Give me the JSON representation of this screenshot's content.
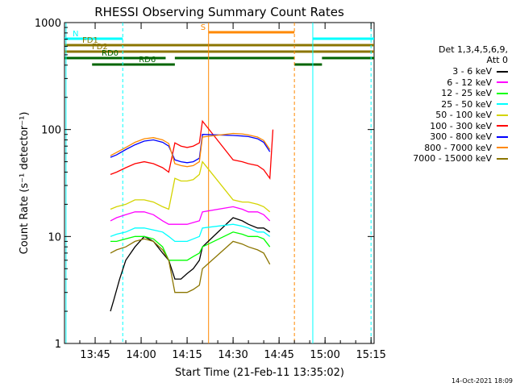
{
  "chart_data": {
    "type": "line",
    "title": "RHESSI Observing Summary Count Rates",
    "xlabel": "Start Time (21-Feb-11 13:35:02)",
    "ylabel": "Count Rate (s⁻¹ detector⁻¹)",
    "yscale": "log",
    "ylim": [
      1,
      1000
    ],
    "xlim_minutes": [
      0,
      101
    ],
    "x_tick_minutes": [
      10,
      25,
      40,
      55,
      70,
      85,
      100
    ],
    "x_tick_labels": [
      "13:45",
      "14:00",
      "14:15",
      "14:30",
      "14:45",
      "15:00",
      "15:15"
    ],
    "y_tick_values": [
      1,
      10,
      100,
      1000
    ],
    "y_tick_labels": [
      "1",
      "10",
      "100",
      "1000"
    ],
    "legend_title": [
      "Det 1,3,4,5,6,9,",
      "Att 0"
    ],
    "series": [
      {
        "name": "3 - 6 keV",
        "color": "#000000",
        "points": [
          [
            15,
            2
          ],
          [
            16,
            2.5
          ],
          [
            18,
            4
          ],
          [
            20,
            6
          ],
          [
            23,
            8
          ],
          [
            26,
            10
          ],
          [
            29,
            9
          ],
          [
            32,
            7
          ],
          [
            34,
            6
          ],
          [
            36,
            4
          ],
          [
            38,
            4
          ],
          [
            40,
            4.5
          ],
          [
            42,
            5
          ],
          [
            44,
            6
          ],
          [
            45,
            8
          ],
          [
            55,
            15
          ],
          [
            58,
            14
          ],
          [
            60,
            13
          ],
          [
            63,
            12
          ],
          [
            65,
            12
          ],
          [
            67,
            11
          ]
        ]
      },
      {
        "name": "6 - 12 keV",
        "color": "#ff00ff",
        "points": [
          [
            15,
            14
          ],
          [
            17,
            15
          ],
          [
            20,
            16
          ],
          [
            23,
            17
          ],
          [
            26,
            17
          ],
          [
            29,
            16
          ],
          [
            32,
            14
          ],
          [
            34,
            13
          ],
          [
            36,
            13
          ],
          [
            38,
            13
          ],
          [
            40,
            13
          ],
          [
            42,
            13.5
          ],
          [
            44,
            14
          ],
          [
            45,
            17
          ],
          [
            55,
            19
          ],
          [
            58,
            18
          ],
          [
            60,
            17
          ],
          [
            63,
            17
          ],
          [
            65,
            16
          ],
          [
            67,
            14
          ]
        ]
      },
      {
        "name": "12 - 25 keV",
        "color": "#00ff00",
        "points": [
          [
            15,
            9
          ],
          [
            17,
            9
          ],
          [
            20,
            9.5
          ],
          [
            23,
            10
          ],
          [
            26,
            10
          ],
          [
            29,
            9.5
          ],
          [
            32,
            8
          ],
          [
            34,
            6
          ],
          [
            36,
            6
          ],
          [
            38,
            6
          ],
          [
            40,
            6
          ],
          [
            42,
            6.5
          ],
          [
            44,
            7
          ],
          [
            45,
            8
          ],
          [
            55,
            11
          ],
          [
            58,
            10.5
          ],
          [
            60,
            10
          ],
          [
            63,
            10
          ],
          [
            65,
            9.5
          ],
          [
            67,
            8
          ]
        ]
      },
      {
        "name": "25 - 50 keV",
        "color": "#00ffff",
        "points": [
          [
            15,
            10
          ],
          [
            17,
            10.5
          ],
          [
            20,
            11
          ],
          [
            23,
            12
          ],
          [
            26,
            12
          ],
          [
            29,
            11.5
          ],
          [
            32,
            11
          ],
          [
            34,
            10
          ],
          [
            36,
            9
          ],
          [
            38,
            9
          ],
          [
            40,
            9
          ],
          [
            42,
            9.5
          ],
          [
            44,
            10
          ],
          [
            45,
            12
          ],
          [
            55,
            13
          ],
          [
            58,
            12.5
          ],
          [
            60,
            12
          ],
          [
            63,
            11
          ],
          [
            65,
            11
          ],
          [
            67,
            10
          ]
        ]
      },
      {
        "name": "50 - 100 keV",
        "color": "#d4d400",
        "points": [
          [
            15,
            18
          ],
          [
            17,
            19
          ],
          [
            20,
            20
          ],
          [
            23,
            22
          ],
          [
            26,
            22
          ],
          [
            29,
            21
          ],
          [
            32,
            19
          ],
          [
            34,
            18
          ],
          [
            36,
            35
          ],
          [
            38,
            33
          ],
          [
            40,
            33
          ],
          [
            42,
            34
          ],
          [
            44,
            38
          ],
          [
            45,
            50
          ],
          [
            55,
            22
          ],
          [
            58,
            21
          ],
          [
            60,
            21
          ],
          [
            63,
            20
          ],
          [
            65,
            19
          ],
          [
            67,
            17
          ]
        ]
      },
      {
        "name": "100 - 300 keV",
        "color": "#ff0000",
        "points": [
          [
            15,
            38
          ],
          [
            17,
            40
          ],
          [
            20,
            44
          ],
          [
            23,
            48
          ],
          [
            26,
            50
          ],
          [
            29,
            48
          ],
          [
            32,
            44
          ],
          [
            34,
            40
          ],
          [
            36,
            75
          ],
          [
            38,
            70
          ],
          [
            40,
            68
          ],
          [
            42,
            70
          ],
          [
            44,
            75
          ],
          [
            45,
            120
          ],
          [
            55,
            52
          ],
          [
            58,
            50
          ],
          [
            60,
            48
          ],
          [
            63,
            46
          ],
          [
            65,
            42
          ],
          [
            67,
            35
          ],
          [
            68,
            100
          ]
        ]
      },
      {
        "name": "300 - 800 keV",
        "color": "#0000ff",
        "points": [
          [
            15,
            55
          ],
          [
            17,
            58
          ],
          [
            20,
            65
          ],
          [
            23,
            72
          ],
          [
            26,
            78
          ],
          [
            29,
            80
          ],
          [
            32,
            76
          ],
          [
            34,
            70
          ],
          [
            36,
            52
          ],
          [
            38,
            50
          ],
          [
            40,
            49
          ],
          [
            42,
            50
          ],
          [
            44,
            54
          ],
          [
            45,
            90
          ],
          [
            55,
            88
          ],
          [
            58,
            87
          ],
          [
            60,
            86
          ],
          [
            63,
            82
          ],
          [
            65,
            76
          ],
          [
            67,
            62
          ]
        ]
      },
      {
        "name": "800 - 7000 keV",
        "color": "#ff8800",
        "points": [
          [
            15,
            57
          ],
          [
            17,
            61
          ],
          [
            20,
            68
          ],
          [
            23,
            76
          ],
          [
            26,
            82
          ],
          [
            29,
            84
          ],
          [
            32,
            80
          ],
          [
            34,
            74
          ],
          [
            36,
            48
          ],
          [
            38,
            46
          ],
          [
            40,
            45
          ],
          [
            42,
            46
          ],
          [
            44,
            50
          ],
          [
            45,
            85
          ],
          [
            55,
            92
          ],
          [
            58,
            91
          ],
          [
            60,
            89
          ],
          [
            63,
            85
          ],
          [
            65,
            79
          ],
          [
            67,
            65
          ]
        ]
      },
      {
        "name": "7000 - 15000 keV",
        "color": "#8b7500",
        "points": [
          [
            15,
            7
          ],
          [
            17,
            7.5
          ],
          [
            20,
            8
          ],
          [
            23,
            9
          ],
          [
            26,
            9.5
          ],
          [
            29,
            9
          ],
          [
            32,
            7.5
          ],
          [
            34,
            6
          ],
          [
            36,
            3
          ],
          [
            38,
            3
          ],
          [
            40,
            3
          ],
          [
            42,
            3.2
          ],
          [
            44,
            3.5
          ],
          [
            45,
            5
          ],
          [
            55,
            9
          ],
          [
            58,
            8.5
          ],
          [
            60,
            8
          ],
          [
            63,
            7.5
          ],
          [
            65,
            7
          ],
          [
            67,
            5.5
          ]
        ]
      }
    ],
    "state_bars": [
      {
        "label": "N",
        "color": "#00ffff",
        "row": 0,
        "segments": [
          [
            0,
            19
          ],
          [
            81,
            101
          ]
        ]
      },
      {
        "label": "S",
        "color": "#ff8800",
        "row": -1,
        "segments": [
          [
            47,
            75
          ]
        ]
      },
      {
        "label": "FD1",
        "color": "#8b7500",
        "row": 1,
        "segments": [
          [
            0,
            101
          ]
        ]
      },
      {
        "label": "FD2",
        "color": "#8b7500",
        "row": 2,
        "segments": [
          [
            0,
            101
          ]
        ]
      },
      {
        "label": "RD0",
        "color": "#006400",
        "row": 3,
        "segments": [
          [
            0,
            33
          ],
          [
            36,
            75
          ],
          [
            84,
            101
          ]
        ]
      },
      {
        "label": "RD6",
        "color": "#006400",
        "row": 4,
        "segments": [
          [
            9,
            36
          ],
          [
            75,
            84
          ]
        ]
      }
    ],
    "vlines": [
      {
        "x": 0.5,
        "color": "#00ffff",
        "dash": false
      },
      {
        "x": 19,
        "color": "#00ffff",
        "dash": true
      },
      {
        "x": 47,
        "color": "#ff8800",
        "dash": false
      },
      {
        "x": 75,
        "color": "#ff8800",
        "dash": true
      },
      {
        "x": 81,
        "color": "#00ffff",
        "dash": false
      },
      {
        "x": 100,
        "color": "#00ffff",
        "dash": true
      }
    ]
  },
  "footer": {
    "timestamp": "14-Oct-2021 18:09"
  }
}
